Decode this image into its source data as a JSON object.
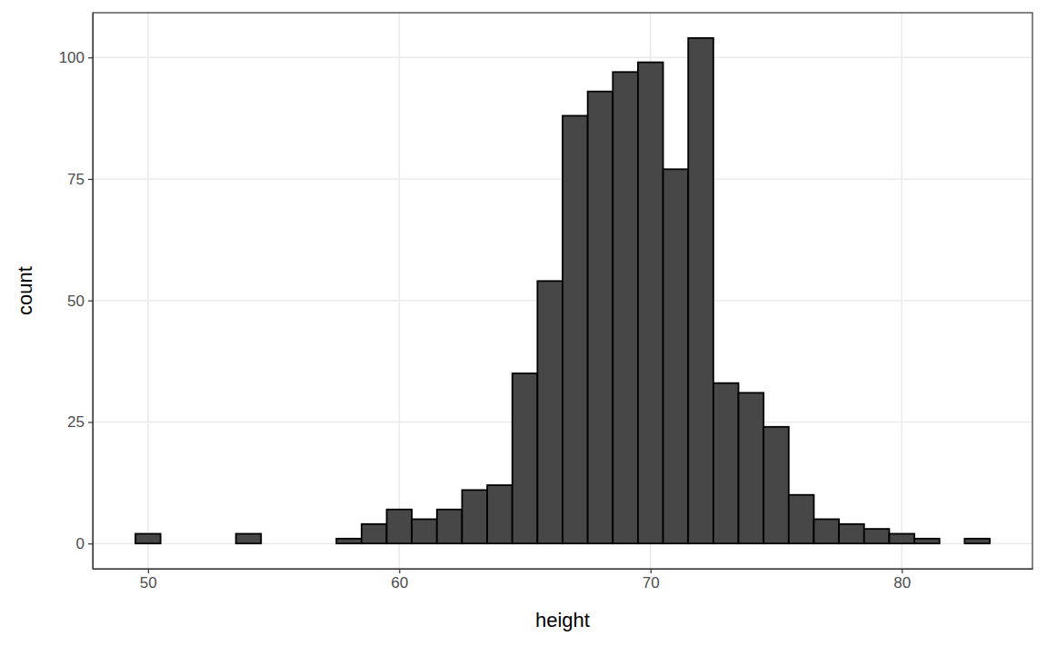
{
  "chart_data": {
    "type": "histogram",
    "x_label": "height",
    "y_label": "count",
    "bins": [
      49.5,
      50.5,
      51.5,
      52.5,
      53.5,
      54.5,
      55.5,
      56.5,
      57.5,
      58.5,
      59.5,
      60.5,
      61.5,
      62.5,
      63.5,
      64.5,
      65.5,
      66.5,
      67.5,
      68.5,
      69.5,
      70.5,
      71.5,
      72.5,
      73.5,
      74.5,
      75.5,
      76.5,
      77.5,
      78.5,
      79.5,
      80.5,
      81.5,
      82.5,
      83.5
    ],
    "values": [
      2,
      0,
      0,
      0,
      2,
      0,
      0,
      0,
      1,
      4,
      7,
      5,
      7,
      11,
      12,
      35,
      54,
      88,
      93,
      97,
      99,
      77,
      104,
      33,
      31,
      24,
      10,
      5,
      4,
      3,
      2,
      1,
      0,
      1
    ],
    "color": "#474747",
    "xlim": [
      47.8,
      85.2
    ],
    "xticks": [
      50,
      60,
      70,
      80
    ],
    "ylim": [
      -5.2,
      109.2
    ],
    "yticks": [
      0,
      25,
      50,
      75,
      100
    ],
    "grid": true
  }
}
